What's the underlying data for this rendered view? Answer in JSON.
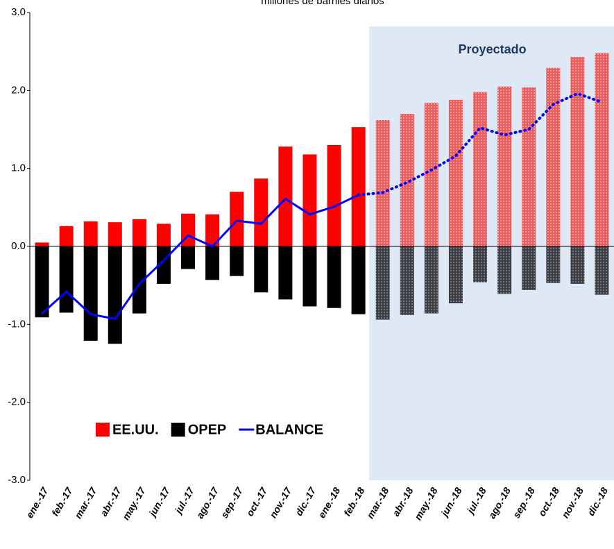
{
  "chart_data": {
    "type": "bar",
    "subtitle": "millones de barriles diarios",
    "categories": [
      "ene.-17",
      "feb.-17",
      "mar.-17",
      "abr.-17",
      "may.-17",
      "jun.-17",
      "jul.-17",
      "ago.-17",
      "sep.-17",
      "oct.-17",
      "nov.-17",
      "dic.-17",
      "ene.-18",
      "feb.-18",
      "mar.-18",
      "abr.-18",
      "may.-18",
      "jun.-18",
      "jul.-18",
      "ago.-18",
      "sep.-18",
      "oct.-18",
      "nov.-18",
      "dic.-18"
    ],
    "series": [
      {
        "name": "EE.UU.",
        "type": "bar",
        "color": "#ff0000",
        "values": [
          0.05,
          0.26,
          0.32,
          0.31,
          0.35,
          0.29,
          0.42,
          0.41,
          0.7,
          0.87,
          1.28,
          1.18,
          1.3,
          1.53,
          1.62,
          1.7,
          1.84,
          1.88,
          1.98,
          2.05,
          2.04,
          2.29,
          2.43,
          2.48
        ]
      },
      {
        "name": "OPEP",
        "type": "bar",
        "color": "#000000",
        "values": [
          -0.91,
          -0.85,
          -1.21,
          -1.25,
          -0.86,
          -0.48,
          -0.29,
          -0.43,
          -0.38,
          -0.59,
          -0.68,
          -0.77,
          -0.79,
          -0.87,
          -0.94,
          -0.88,
          -0.86,
          -0.73,
          -0.46,
          -0.61,
          -0.56,
          -0.47,
          -0.48,
          -0.62
        ]
      },
      {
        "name": "BALANCE",
        "type": "line",
        "color": "#0000ff",
        "values": [
          -0.86,
          -0.58,
          -0.87,
          -0.93,
          -0.48,
          -0.18,
          0.14,
          0.0,
          0.33,
          0.29,
          0.61,
          0.41,
          0.51,
          0.66,
          0.69,
          0.82,
          0.98,
          1.16,
          1.52,
          1.43,
          1.5,
          1.82,
          1.96,
          1.85
        ]
      }
    ],
    "shaded_region": {
      "label": "Proyectado",
      "from": "mar.-18",
      "to": "dic.-18",
      "color": "#dfe9f6"
    },
    "ylim": [
      -3,
      3
    ],
    "yticks": [
      {
        "value": -3,
        "label": "-3.0"
      },
      {
        "value": -2,
        "label": "-2.0"
      },
      {
        "value": -1,
        "label": "-1.0"
      },
      {
        "value": 0,
        "label": "0.0"
      },
      {
        "value": 1,
        "label": "1.0"
      },
      {
        "value": 2,
        "label": "2.0"
      },
      {
        "value": 3,
        "label": "3.0"
      }
    ],
    "legend": "lower left"
  }
}
